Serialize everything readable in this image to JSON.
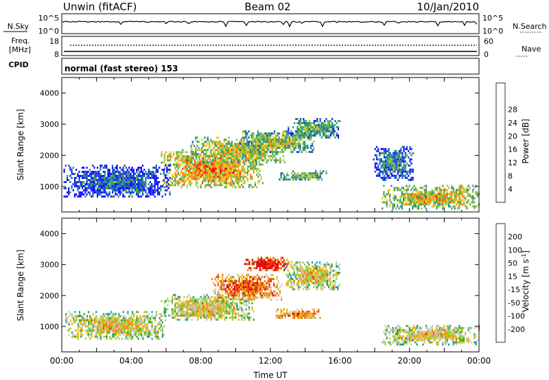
{
  "header": {
    "station": "Unwin (fitACF)",
    "beam": "Beam 02",
    "date": "10/Jan/2010"
  },
  "summary_panels": {
    "nsky": {
      "label": "N.Sky",
      "left_ticks": [
        "10^5",
        "10^0"
      ],
      "right_ticks": [
        "10^5",
        "10^0"
      ],
      "right_label": "N.Search"
    },
    "freq": {
      "label_line1": "Freq.",
      "label_line2": "[MHz]",
      "left_ticks": [
        "18",
        "8"
      ],
      "right_ticks": [
        "60",
        "0"
      ],
      "right_label": "Nave"
    },
    "cpid": {
      "label": "CPID",
      "text": "normal (fast stereo) 153"
    }
  },
  "chart_data": [
    {
      "type": "heatmap",
      "name": "power",
      "ylabel": "Slant Range [km]",
      "xlabel": "",
      "ylim": [
        180,
        4500
      ],
      "xlim_hours": [
        0,
        24
      ],
      "y_ticks": [
        "1000",
        "2000",
        "3000",
        "4000"
      ],
      "colorbar": {
        "label": "Power [dB]",
        "ticks": [
          "4",
          "8",
          "12",
          "16",
          "20",
          "24",
          "28"
        ],
        "colors": [
          "#1414ff",
          "#1e50c8",
          "#2a8c8c",
          "#3ea65a",
          "#8cc83c",
          "#f0c81e",
          "#fa8c0a",
          "#f03214",
          "#dc0000"
        ]
      },
      "blobs": [
        {
          "t0": 5.7,
          "t1": 11.6,
          "r0": 950,
          "r1": 2200,
          "level": 0.62
        },
        {
          "t0": 7.4,
          "t1": 12.8,
          "r0": 1800,
          "r1": 2600,
          "level": 0.5
        },
        {
          "t0": 10.2,
          "t1": 14.6,
          "r0": 2100,
          "r1": 2800,
          "level": 0.45
        },
        {
          "t0": 13.0,
          "t1": 16.0,
          "r0": 2600,
          "r1": 3200,
          "level": 0.35
        },
        {
          "t0": 12.4,
          "t1": 15.2,
          "r0": 1200,
          "r1": 1520,
          "level": 0.4
        },
        {
          "t0": 0.1,
          "t1": 6.2,
          "r0": 650,
          "r1": 1700,
          "level": 0.15
        },
        {
          "t0": 17.9,
          "t1": 20.2,
          "r0": 1200,
          "r1": 2300,
          "level": 0.2
        },
        {
          "t0": 18.4,
          "t1": 24.0,
          "r0": 300,
          "r1": 1050,
          "level": 0.55
        }
      ]
    },
    {
      "type": "heatmap",
      "name": "velocity",
      "ylabel": "Slant Range [km]",
      "xlabel": "Time UT",
      "ylim": [
        180,
        4500
      ],
      "xlim_hours": [
        0,
        24
      ],
      "x_ticks": [
        "00:00",
        "04:00",
        "08:00",
        "12:00",
        "16:00",
        "20:00",
        "00:00"
      ],
      "y_ticks": [
        "1000",
        "2000",
        "3000",
        "4000"
      ],
      "colorbar": {
        "label": "Velocity [m s^-1]",
        "ticks": [
          "200",
          "100",
          "50",
          "15",
          "-15",
          "-50",
          "-100",
          "-200"
        ],
        "colors": [
          "#1e28b4",
          "#1e8cdc",
          "#1ea050",
          "#8cd23c",
          "#c8c8c0",
          "#f0b400",
          "#f08200",
          "#f04600",
          "#e00000"
        ]
      },
      "blobs": [
        {
          "t0": 5.7,
          "t1": 11.0,
          "r0": 1200,
          "r1": 2050,
          "level": 0.5
        },
        {
          "t0": 8.6,
          "t1": 12.6,
          "r0": 1900,
          "r1": 2700,
          "level": 0.75
        },
        {
          "t0": 10.4,
          "t1": 13.2,
          "r0": 2800,
          "r1": 3250,
          "level": 0.92
        },
        {
          "t0": 12.3,
          "t1": 14.9,
          "r0": 1250,
          "r1": 1580,
          "level": 0.72
        },
        {
          "t0": 12.8,
          "t1": 16.0,
          "r0": 2200,
          "r1": 3100,
          "level": 0.5
        },
        {
          "t0": 18.4,
          "t1": 24.0,
          "r0": 450,
          "r1": 1050,
          "level": 0.5
        },
        {
          "t0": 0.2,
          "t1": 6.0,
          "r0": 600,
          "r1": 1500,
          "level": 0.5
        }
      ]
    }
  ]
}
